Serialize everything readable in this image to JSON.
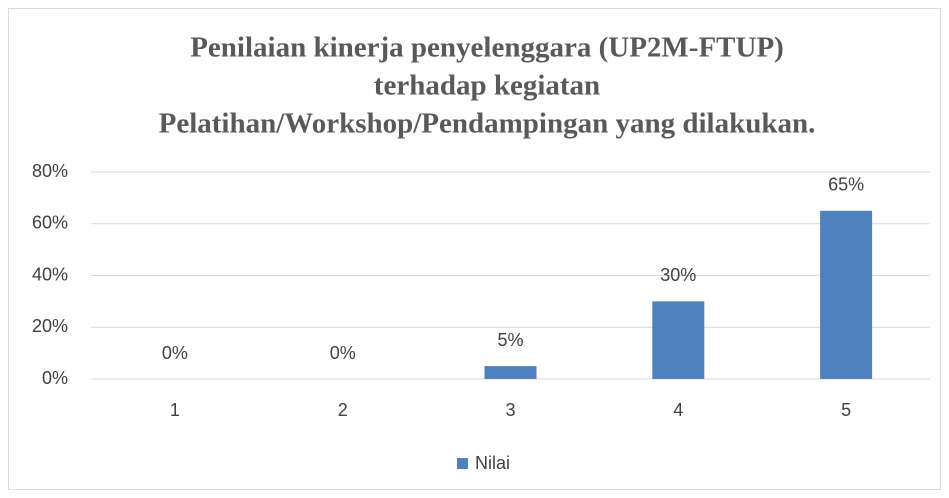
{
  "chart_data": {
    "type": "bar",
    "title": [
      "Penilaian kinerja penyelenggara (UP2M-FTUP)",
      "terhadap kegiatan",
      "Pelatihan/Workshop/Pendampingan yang dilakukan."
    ],
    "categories": [
      "1",
      "2",
      "3",
      "4",
      "5"
    ],
    "series": [
      {
        "name": "Nilai",
        "color": "#4f81bd",
        "values": [
          0,
          0,
          5,
          30,
          65
        ],
        "value_labels": [
          "0%",
          "0%",
          "5%",
          "30%",
          "65%"
        ]
      }
    ],
    "ylim": [
      0,
      80
    ],
    "yticks": [
      {
        "value": 0,
        "label": "0%"
      },
      {
        "value": 20,
        "label": "20%"
      },
      {
        "value": 40,
        "label": "40%"
      },
      {
        "value": 60,
        "label": "60%"
      },
      {
        "value": 80,
        "label": "80%"
      }
    ],
    "grid": true,
    "legend": "bottom"
  }
}
